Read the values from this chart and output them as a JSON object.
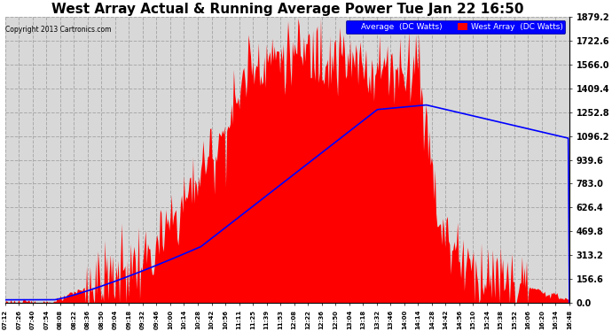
{
  "title": "West Array Actual & Running Average Power Tue Jan 22 16:50",
  "copyright": "Copyright 2013 Cartronics.com",
  "ylim": [
    0.0,
    1879.2
  ],
  "yticks": [
    0.0,
    156.6,
    313.2,
    469.8,
    626.4,
    783.0,
    939.6,
    1096.2,
    1252.8,
    1409.4,
    1566.0,
    1722.6,
    1879.2
  ],
  "legend_labels": [
    "Average  (DC Watts)",
    "West Array  (DC Watts)"
  ],
  "background_color": "#ffffff",
  "plot_bg_color": "#d8d8d8",
  "grid_color": "#aaaaaa",
  "title_fontsize": 11,
  "xtick_labels": [
    "07:12",
    "07:26",
    "07:40",
    "07:54",
    "08:08",
    "08:22",
    "08:36",
    "08:50",
    "09:04",
    "09:18",
    "09:32",
    "09:46",
    "10:00",
    "10:14",
    "10:28",
    "10:42",
    "10:56",
    "11:11",
    "11:25",
    "11:39",
    "11:53",
    "12:08",
    "12:22",
    "12:36",
    "12:50",
    "13:04",
    "13:18",
    "13:32",
    "13:46",
    "14:00",
    "14:14",
    "14:28",
    "14:42",
    "14:56",
    "15:10",
    "15:24",
    "15:38",
    "15:52",
    "16:06",
    "16:20",
    "16:34",
    "16:48"
  ]
}
